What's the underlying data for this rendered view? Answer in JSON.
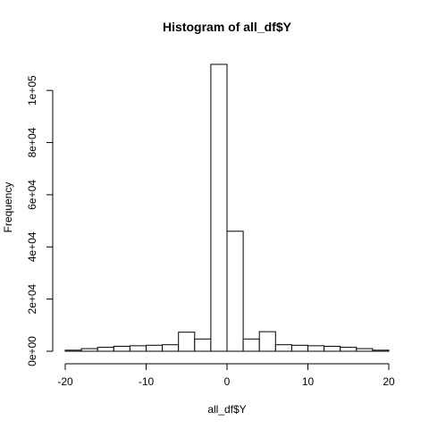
{
  "chart_data": {
    "type": "bar",
    "title": "Histogram of all_df$Y",
    "xlabel": "all_df$Y",
    "ylabel": "Frequency",
    "xlim": [
      -20,
      20
    ],
    "ylim": [
      0,
      110000
    ],
    "x_ticks": [
      -20,
      -10,
      0,
      10,
      20
    ],
    "x_tick_labels": [
      "-20",
      "-10",
      "0",
      "10",
      "20"
    ],
    "y_ticks": [
      0,
      20000,
      40000,
      60000,
      80000,
      100000
    ],
    "y_tick_labels": [
      "0e+00",
      "2e+04",
      "4e+04",
      "6e+04",
      "8e+04",
      "1e+05"
    ],
    "grid": false,
    "bins": [
      {
        "x0": -20,
        "x1": -18,
        "count": 400
      },
      {
        "x0": -18,
        "x1": -16,
        "count": 1000
      },
      {
        "x0": -16,
        "x1": -14,
        "count": 1500
      },
      {
        "x0": -14,
        "x1": -12,
        "count": 1900
      },
      {
        "x0": -12,
        "x1": -10,
        "count": 2100
      },
      {
        "x0": -10,
        "x1": -8,
        "count": 2300
      },
      {
        "x0": -8,
        "x1": -6,
        "count": 2500
      },
      {
        "x0": -6,
        "x1": -4,
        "count": 7300
      },
      {
        "x0": -4,
        "x1": -2,
        "count": 4700
      },
      {
        "x0": -2,
        "x1": 0,
        "count": 110000
      },
      {
        "x0": 0,
        "x1": 2,
        "count": 46000
      },
      {
        "x0": 2,
        "x1": 4,
        "count": 4700
      },
      {
        "x0": 4,
        "x1": 6,
        "count": 7500
      },
      {
        "x0": 6,
        "x1": 8,
        "count": 2500
      },
      {
        "x0": 8,
        "x1": 10,
        "count": 2300
      },
      {
        "x0": 10,
        "x1": 12,
        "count": 2100
      },
      {
        "x0": 12,
        "x1": 14,
        "count": 1900
      },
      {
        "x0": 14,
        "x1": 16,
        "count": 1500
      },
      {
        "x0": 16,
        "x1": 18,
        "count": 1000
      },
      {
        "x0": 18,
        "x1": 20,
        "count": 400
      }
    ]
  }
}
